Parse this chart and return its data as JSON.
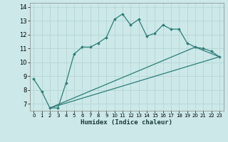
{
  "xlabel": "Humidex (Indice chaleur)",
  "background_color": "#cce8e8",
  "grid_color": "#b8d8d8",
  "line_color": "#2d7d78",
  "xlim": [
    -0.5,
    23.5
  ],
  "ylim": [
    6.5,
    14.3
  ],
  "yticks": [
    7,
    8,
    9,
    10,
    11,
    12,
    13,
    14
  ],
  "xticks": [
    0,
    1,
    2,
    3,
    4,
    5,
    6,
    7,
    8,
    9,
    10,
    11,
    12,
    13,
    14,
    15,
    16,
    17,
    18,
    19,
    20,
    21,
    22,
    23
  ],
  "series1_x": [
    0,
    1,
    2,
    3,
    4,
    5,
    6,
    7,
    8,
    9,
    10,
    11,
    12,
    13,
    14,
    15,
    16,
    17,
    18,
    19,
    20,
    21,
    22,
    23
  ],
  "series1_y": [
    8.8,
    7.9,
    6.7,
    6.7,
    8.5,
    10.6,
    11.1,
    11.1,
    11.4,
    11.8,
    13.1,
    13.5,
    12.7,
    13.1,
    11.9,
    12.1,
    12.7,
    12.4,
    12.4,
    11.4,
    11.1,
    11.0,
    10.8,
    10.4
  ],
  "series2_x": [
    2,
    23
  ],
  "series2_y": [
    6.7,
    10.4
  ],
  "series3_x": [
    2,
    20,
    23
  ],
  "series3_y": [
    6.7,
    11.1,
    10.4
  ]
}
